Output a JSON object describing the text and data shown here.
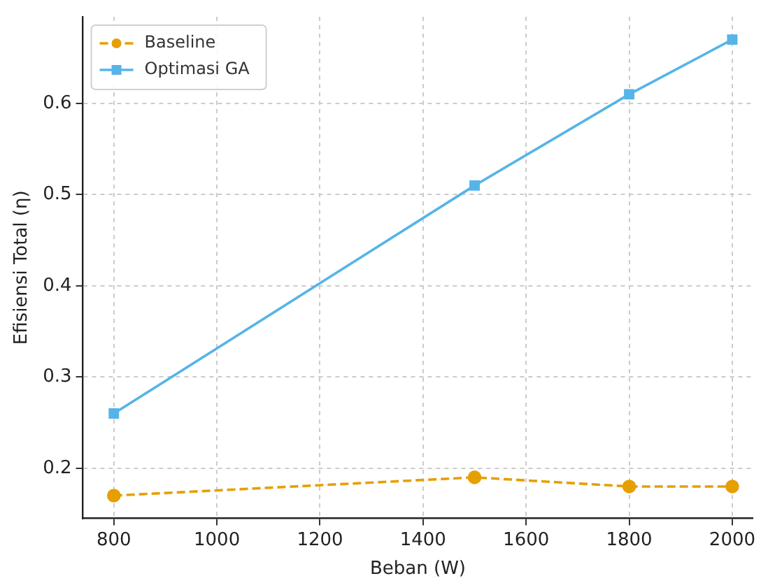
{
  "chart_data": {
    "type": "line",
    "xlabel": "Beban (W)",
    "ylabel": "Efisiensi Total (η)",
    "x": [
      800,
      1500,
      1800,
      2000
    ],
    "series": [
      {
        "name": "Baseline",
        "color": "#e69f00",
        "values": [
          0.17,
          0.19,
          0.18,
          0.18
        ],
        "marker": "circle",
        "line_style": "dashed"
      },
      {
        "name": "Optimasi GA",
        "color": "#56b4e9",
        "values": [
          0.26,
          0.51,
          0.61,
          0.67
        ],
        "marker": "square",
        "line_style": "solid"
      }
    ],
    "xlim": [
      740,
      2040
    ],
    "xticks": [
      800,
      1000,
      1200,
      1400,
      1600,
      1800,
      2000
    ],
    "ylim": [
      0.145,
      0.695
    ],
    "yticks": [
      0.2,
      0.3,
      0.4,
      0.5,
      0.6
    ],
    "grid": true,
    "legend": "top left"
  }
}
